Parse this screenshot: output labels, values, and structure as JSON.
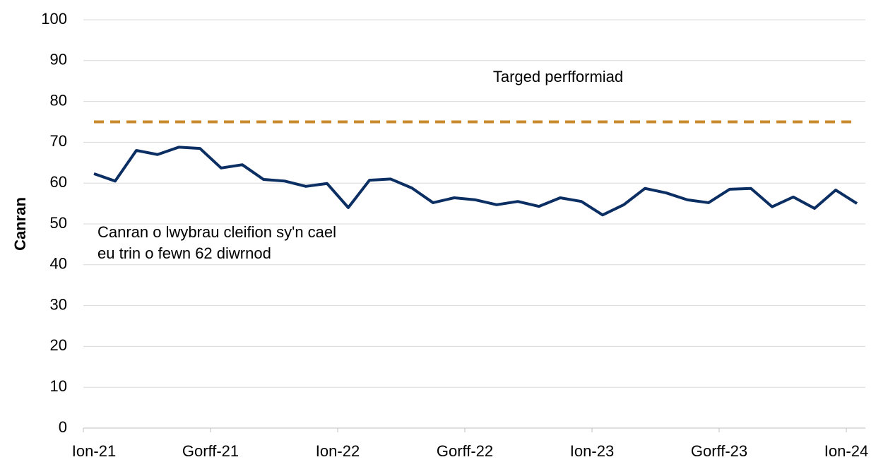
{
  "chart_data": {
    "type": "line",
    "y_label": "Canran",
    "categories": [
      "Ion-21",
      null,
      null,
      null,
      null,
      null,
      "Gorff-21",
      null,
      null,
      null,
      null,
      null,
      "Ion-22",
      null,
      null,
      null,
      null,
      null,
      "Gorff-22",
      null,
      null,
      null,
      null,
      null,
      "Ion-23",
      null,
      null,
      null,
      null,
      null,
      "Gorff-23",
      null,
      null,
      null,
      null,
      null,
      "Ion-24"
    ],
    "series": [
      {
        "color": "#0b2e63",
        "values": [
          62.3,
          60.5,
          68,
          67,
          68.8,
          68.5,
          63.7,
          64.5,
          60.9,
          60.5,
          59.2,
          59.9,
          54,
          60.7,
          61,
          58.8,
          55.2,
          56.4,
          55.9,
          54.7,
          55.5,
          54.3,
          56.4,
          55.5,
          52.2,
          54.7,
          58.7,
          57.6,
          55.9,
          55.2,
          58.5,
          58.7,
          54.2,
          56.6,
          53.8,
          58.3,
          55
        ]
      }
    ],
    "reference_lines": [
      {
        "value": 75,
        "color": "#c98a2b",
        "dashed": true
      }
    ],
    "annotations": [
      {
        "text": "Targed perfformiad"
      },
      {
        "lines": [
          "Canran o lwybrau cleifion sy'n cael",
          "eu trin o fewn 62 diwrnod"
        ]
      }
    ],
    "ylim": [
      0,
      100
    ],
    "yticks": [
      0,
      10,
      20,
      30,
      40,
      50,
      60,
      70,
      80,
      90,
      100
    ],
    "grid": true
  }
}
